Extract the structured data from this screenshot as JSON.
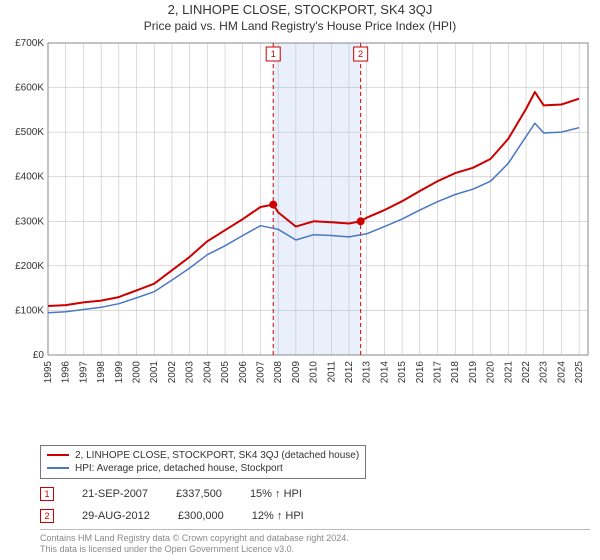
{
  "title_line1": "2, LINHOPE CLOSE, STOCKPORT, SK4 3QJ",
  "title_line2": "Price paid vs. HM Land Registry's House Price Index (HPI)",
  "chart": {
    "type": "line",
    "background_color": "#ffffff",
    "plot_background": "#ffffff",
    "grid_color": "#b8b8b8",
    "axis_color": "#888888",
    "xlim": [
      1995,
      2025.5
    ],
    "ylim": [
      0,
      700000
    ],
    "ytick_step": 100000,
    "ytick_labels": [
      "£0",
      "£100K",
      "£200K",
      "£300K",
      "£400K",
      "£500K",
      "£600K",
      "£700K"
    ],
    "xticks": [
      1995,
      1996,
      1997,
      1998,
      1999,
      2000,
      2001,
      2002,
      2003,
      2004,
      2005,
      2006,
      2007,
      2008,
      2009,
      2010,
      2011,
      2012,
      2013,
      2014,
      2015,
      2016,
      2017,
      2018,
      2019,
      2020,
      2021,
      2022,
      2023,
      2024,
      2025
    ],
    "shaded_band": {
      "start": 2007.72,
      "end": 2012.66,
      "color": "#e9f0fb"
    },
    "vlines": [
      {
        "x": 2007.72,
        "color": "#cc0000",
        "dash": "4,3"
      },
      {
        "x": 2012.66,
        "color": "#cc0000",
        "dash": "4,3"
      }
    ],
    "vline_labels": [
      {
        "x": 2007.72,
        "text": "1",
        "color": "#cc0000"
      },
      {
        "x": 2012.66,
        "text": "2",
        "color": "#cc0000"
      }
    ],
    "series": [
      {
        "name": "2, LINHOPE CLOSE, STOCKPORT, SK4 3QJ (detached house)",
        "color": "#cc0000",
        "width": 2,
        "data": [
          [
            1995,
            110000
          ],
          [
            1996,
            112000
          ],
          [
            1997,
            118000
          ],
          [
            1998,
            122000
          ],
          [
            1999,
            130000
          ],
          [
            2000,
            145000
          ],
          [
            2001,
            160000
          ],
          [
            2002,
            190000
          ],
          [
            2003,
            220000
          ],
          [
            2004,
            255000
          ],
          [
            2005,
            280000
          ],
          [
            2006,
            305000
          ],
          [
            2007,
            332000
          ],
          [
            2007.72,
            337500
          ],
          [
            2008,
            320000
          ],
          [
            2009,
            288000
          ],
          [
            2010,
            300000
          ],
          [
            2011,
            298000
          ],
          [
            2012,
            295000
          ],
          [
            2012.66,
            300000
          ],
          [
            2013,
            308000
          ],
          [
            2014,
            325000
          ],
          [
            2015,
            345000
          ],
          [
            2016,
            368000
          ],
          [
            2017,
            390000
          ],
          [
            2018,
            408000
          ],
          [
            2019,
            420000
          ],
          [
            2020,
            440000
          ],
          [
            2021,
            485000
          ],
          [
            2022,
            552000
          ],
          [
            2022.5,
            590000
          ],
          [
            2023,
            560000
          ],
          [
            2024,
            562000
          ],
          [
            2025,
            575000
          ]
        ]
      },
      {
        "name": "HPI: Average price, detached house, Stockport",
        "color": "#4a78c4",
        "width": 1.5,
        "data": [
          [
            1995,
            95000
          ],
          [
            1996,
            97000
          ],
          [
            1997,
            102000
          ],
          [
            1998,
            107000
          ],
          [
            1999,
            115000
          ],
          [
            2000,
            128000
          ],
          [
            2001,
            142000
          ],
          [
            2002,
            168000
          ],
          [
            2003,
            195000
          ],
          [
            2004,
            225000
          ],
          [
            2005,
            245000
          ],
          [
            2006,
            268000
          ],
          [
            2007,
            290000
          ],
          [
            2008,
            282000
          ],
          [
            2009,
            258000
          ],
          [
            2010,
            270000
          ],
          [
            2011,
            268000
          ],
          [
            2012,
            265000
          ],
          [
            2013,
            272000
          ],
          [
            2014,
            288000
          ],
          [
            2015,
            305000
          ],
          [
            2016,
            325000
          ],
          [
            2017,
            344000
          ],
          [
            2018,
            360000
          ],
          [
            2019,
            372000
          ],
          [
            2020,
            390000
          ],
          [
            2021,
            430000
          ],
          [
            2022,
            490000
          ],
          [
            2022.5,
            520000
          ],
          [
            2023,
            498000
          ],
          [
            2024,
            500000
          ],
          [
            2025,
            510000
          ]
        ]
      }
    ],
    "markers": [
      {
        "x": 2007.72,
        "y": 337500,
        "color": "#cc0000",
        "radius": 4
      },
      {
        "x": 2012.66,
        "y": 300000,
        "color": "#cc0000",
        "radius": 4
      }
    ]
  },
  "legend": {
    "entries": [
      {
        "label": "2, LINHOPE CLOSE, STOCKPORT, SK4 3QJ (detached house)",
        "color": "#cc0000"
      },
      {
        "label": "HPI: Average price, detached house, Stockport",
        "color": "#4a78c4"
      }
    ]
  },
  "events": [
    {
      "marker": "1",
      "color": "#cc0000",
      "date": "21-SEP-2007",
      "price": "£337,500",
      "delta": "15% ↑ HPI"
    },
    {
      "marker": "2",
      "color": "#cc0000",
      "date": "29-AUG-2012",
      "price": "£300,000",
      "delta": "12% ↑ HPI"
    }
  ],
  "license": {
    "line1": "Contains HM Land Registry data © Crown copyright and database right 2024.",
    "line2": "This data is licensed under the Open Government Licence v3.0."
  }
}
